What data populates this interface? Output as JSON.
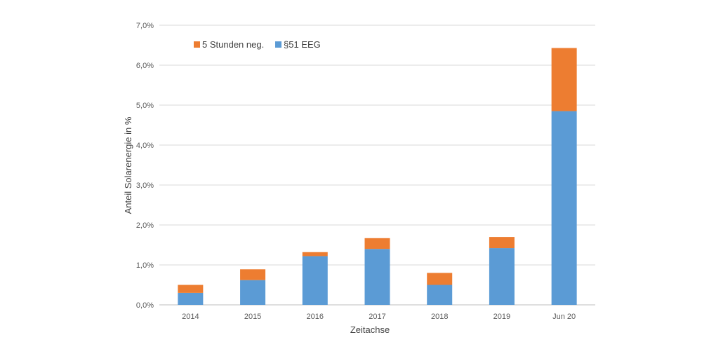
{
  "chart_data": {
    "type": "bar",
    "stacked": true,
    "categories": [
      "2014",
      "2015",
      "2016",
      "2017",
      "2018",
      "2019",
      "Jun 20"
    ],
    "series": [
      {
        "name": "§51 EEG",
        "values": [
          0.3,
          0.62,
          1.22,
          1.4,
          0.5,
          1.42,
          4.85
        ],
        "color": "#5b9bd5"
      },
      {
        "name": "5 Stunden neg.",
        "values": [
          0.2,
          0.27,
          0.1,
          0.27,
          0.3,
          0.28,
          1.58
        ],
        "color": "#ed7d31"
      }
    ],
    "xlabel": "Zeitachse",
    "ylabel": "Anteil Solarenergie in %",
    "ylim": [
      0,
      7
    ],
    "yticks": [
      "0,0%",
      "1,0%",
      "2,0%",
      "3,0%",
      "4,0%",
      "5,0%",
      "6,0%",
      "7,0%"
    ],
    "grid": true,
    "legend": {
      "position": "top-left",
      "order": [
        "5 Stunden neg.",
        "§51 EEG"
      ]
    }
  }
}
